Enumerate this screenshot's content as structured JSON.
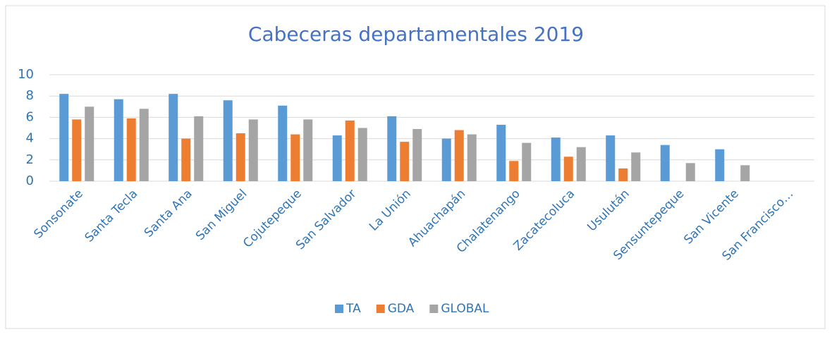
{
  "chart_data": {
    "type": "bar",
    "title": "Cabeceras departamentales 2019",
    "categories": [
      "Sonsonate",
      "Santa Tecla",
      "Santa Ana",
      "San Miguel",
      "Cojutepeque",
      "San Salvador",
      "La Unión",
      "Ahuachapán",
      "Chalatenango",
      "Zacatecoluca",
      "Usulután",
      "Sensuntepeque",
      "San Vicente",
      "San Francisco…"
    ],
    "series": [
      {
        "name": "TA",
        "color": "#5b9bd5",
        "values": [
          8.2,
          7.7,
          8.2,
          7.6,
          7.1,
          4.3,
          6.1,
          4.0,
          5.3,
          4.1,
          4.3,
          3.4,
          3.0,
          null
        ]
      },
      {
        "name": "GDA",
        "color": "#ed7d31",
        "values": [
          5.8,
          5.9,
          4.0,
          4.5,
          4.4,
          5.7,
          3.7,
          4.8,
          1.9,
          2.3,
          1.2,
          null,
          null,
          null
        ]
      },
      {
        "name": "GLOBAL",
        "color": "#a5a5a5",
        "values": [
          7.0,
          6.8,
          6.1,
          5.8,
          5.8,
          5.0,
          4.9,
          4.4,
          3.6,
          3.2,
          2.7,
          1.7,
          1.5,
          null
        ]
      }
    ],
    "ylim": [
      0,
      10
    ],
    "yticks": [
      0,
      2,
      4,
      6,
      8,
      10
    ],
    "grid": true,
    "legend": "bottom"
  }
}
